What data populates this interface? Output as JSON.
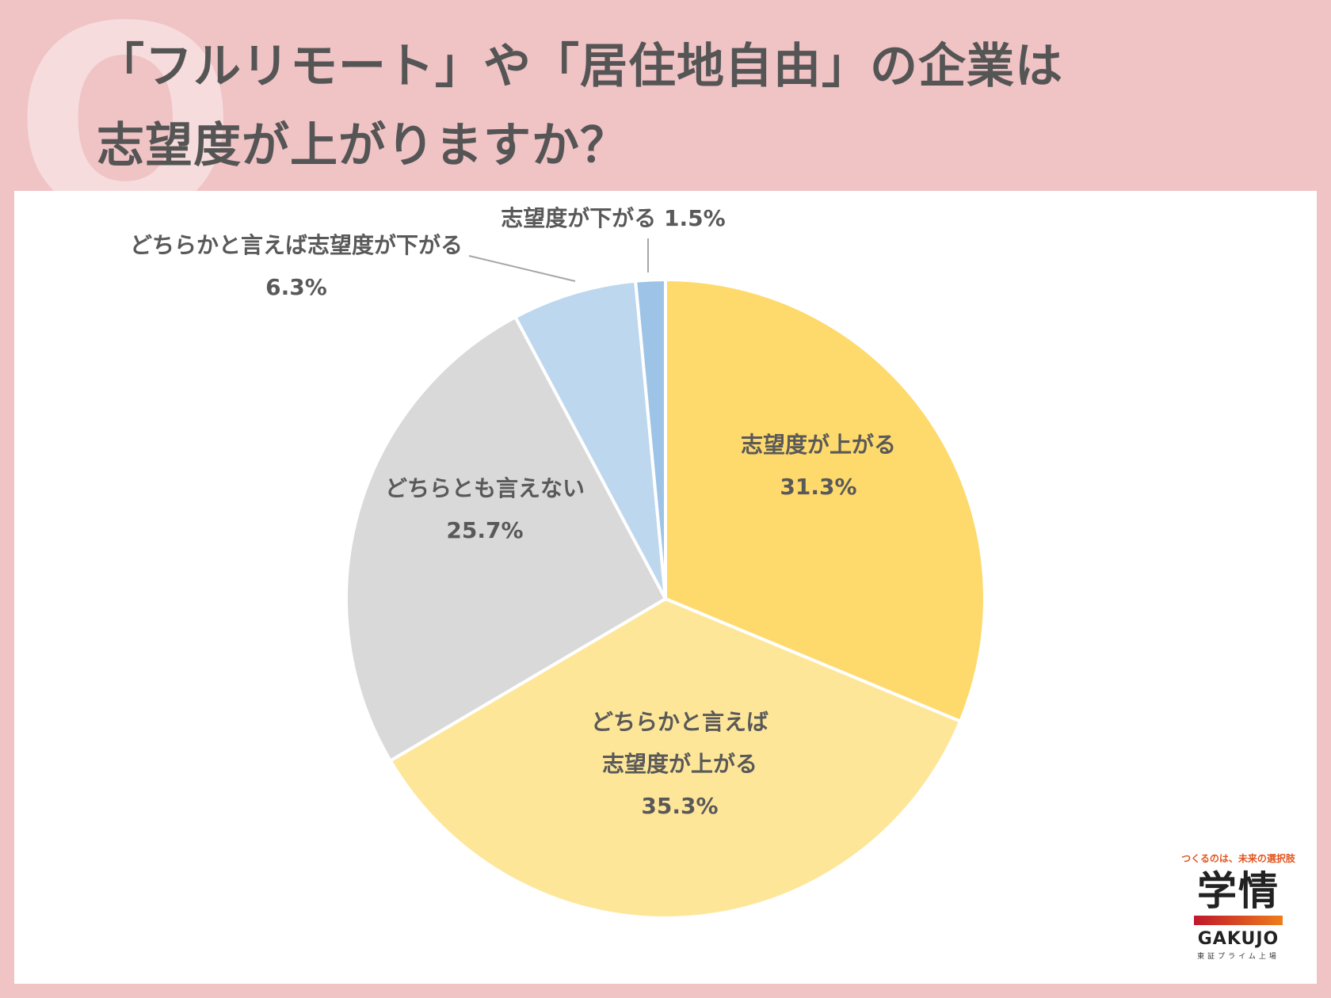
{
  "header": {
    "q_letter": "Q",
    "title_line1": "「フルリモート」や「居住地自由」の企業は",
    "title_line2": "志望度が上がりますか？"
  },
  "chart_data": {
    "type": "pie",
    "start_angle_deg": 0,
    "direction": "clockwise",
    "slices": [
      {
        "label_lines": [
          "志望度が上がる"
        ],
        "value": 31.3,
        "value_label": "31.3%",
        "color": "#fed96b",
        "label_placement": "inside"
      },
      {
        "label_lines": [
          "どちらかと言えば",
          "志望度が上がる"
        ],
        "value": 35.3,
        "value_label": "35.3%",
        "color": "#fee699",
        "label_placement": "inside"
      },
      {
        "label_lines": [
          "どちらとも言えない"
        ],
        "value": 25.7,
        "value_label": "25.7%",
        "color": "#d9d9d9",
        "label_placement": "inside"
      },
      {
        "label_lines": [
          "どちらかと言えば志望度が下がる"
        ],
        "value": 6.3,
        "value_label": "6.3%",
        "color": "#bdd7ee",
        "label_placement": "outside"
      },
      {
        "label_lines": [
          "志望度が下がる"
        ],
        "value": 1.5,
        "value_label": "1.5%",
        "color": "#9dc3e6",
        "label_placement": "outside"
      }
    ]
  },
  "logo": {
    "tagline": "つくるのは、未来の選択肢",
    "kanji": "学情",
    "name": "GAKUJO",
    "sub": "東証プライム上場"
  }
}
